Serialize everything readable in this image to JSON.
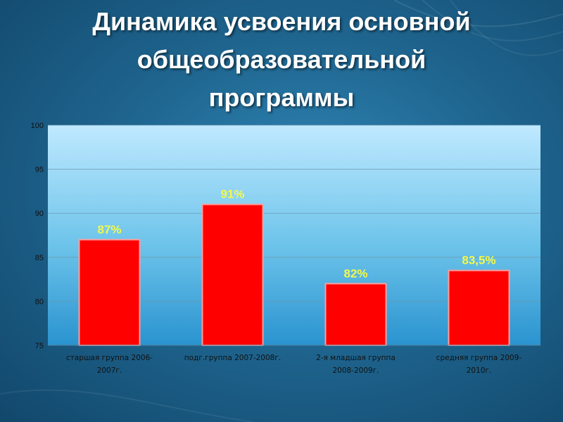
{
  "slide": {
    "title_lines": [
      "Динамика усвоения основной",
      "общеобразовательной",
      "программы"
    ]
  },
  "chart_data": {
    "type": "bar",
    "categories": [
      [
        "старшая группа 2006-",
        "2007г."
      ],
      [
        "подг.группа 2007-2008г."
      ],
      [
        "2-я младшая группа",
        "2008-2009г."
      ],
      [
        "средняя группа 2009-",
        "2010г."
      ]
    ],
    "values": [
      87,
      91,
      82,
      83.5
    ],
    "data_labels": [
      "87%",
      "91%",
      "82%",
      "83,5%"
    ],
    "title": "",
    "xlabel": "",
    "ylabel": "",
    "ylim": [
      75,
      100
    ],
    "yticks": [
      75,
      80,
      85,
      90,
      95,
      100
    ],
    "grid": true,
    "legend": "none",
    "colors": {
      "bar": "#ff0000",
      "bar_edge": "#ff9c9c",
      "data_label": "#f4f84a",
      "plot_top": "#bfe9ff",
      "plot_bottom": "#2a93cf"
    }
  }
}
